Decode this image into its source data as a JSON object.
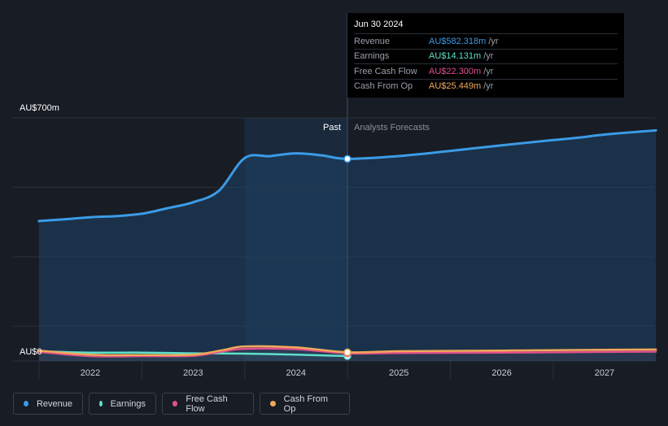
{
  "tooltip": {
    "date": "Jun 30 2024",
    "rows": [
      {
        "label": "Revenue",
        "value": "AU$582.318m",
        "unit": "/yr",
        "color": "#3b9be6"
      },
      {
        "label": "Earnings",
        "value": "AU$14.131m",
        "unit": "/yr",
        "color": "#5ee0c9"
      },
      {
        "label": "Free Cash Flow",
        "value": "AU$22.300m",
        "unit": "/yr",
        "color": "#e0508a"
      },
      {
        "label": "Cash From Op",
        "value": "AU$25.449m",
        "unit": "/yr",
        "color": "#f0a95a"
      }
    ]
  },
  "chart_data": {
    "type": "line",
    "y_top_label": "AU$700m",
    "y_bottom_label": "AU$0",
    "ylim": [
      0,
      700
    ],
    "xlim": [
      2021.5,
      2027.5
    ],
    "x_ticks": [
      "2022",
      "2023",
      "2024",
      "2025",
      "2026",
      "2027"
    ],
    "past_label": "Past",
    "forecast_label": "Analysts Forecasts",
    "past_shade_start": 2023.5,
    "divider_x": 2024.5,
    "legend_placement": "bottom",
    "series": [
      {
        "name": "Revenue",
        "color": "#3b9be6",
        "fill": true,
        "points": [
          [
            2021.5,
            403
          ],
          [
            2021.75,
            408
          ],
          [
            2022.0,
            414
          ],
          [
            2022.25,
            417
          ],
          [
            2022.5,
            424
          ],
          [
            2022.75,
            440
          ],
          [
            2023.0,
            457
          ],
          [
            2023.25,
            490
          ],
          [
            2023.5,
            584
          ],
          [
            2023.75,
            590
          ],
          [
            2024.0,
            598
          ],
          [
            2024.25,
            592
          ],
          [
            2024.5,
            582
          ],
          [
            2025.0,
            590
          ],
          [
            2025.5,
            605
          ],
          [
            2026.0,
            621
          ],
          [
            2026.5,
            636
          ],
          [
            2026.75,
            643
          ],
          [
            2027.0,
            652
          ],
          [
            2027.5,
            664
          ]
        ]
      },
      {
        "name": "Earnings",
        "color": "#5ee0c9",
        "points": [
          [
            2021.5,
            28
          ],
          [
            2022.0,
            24
          ],
          [
            2022.5,
            24
          ],
          [
            2023.0,
            22
          ],
          [
            2023.5,
            21
          ],
          [
            2024.0,
            18
          ],
          [
            2024.5,
            14
          ]
        ]
      },
      {
        "name": "Free Cash Flow",
        "color": "#e0508a",
        "points": [
          [
            2021.5,
            26
          ],
          [
            2022.0,
            14
          ],
          [
            2022.5,
            14
          ],
          [
            2023.0,
            15
          ],
          [
            2023.3,
            28
          ],
          [
            2023.5,
            35
          ],
          [
            2024.0,
            34
          ],
          [
            2024.5,
            22
          ],
          [
            2025.0,
            23
          ],
          [
            2026.0,
            24
          ],
          [
            2027.0,
            26
          ],
          [
            2027.5,
            27
          ]
        ]
      },
      {
        "name": "Cash From Op",
        "color": "#f0a95a",
        "points": [
          [
            2021.5,
            30
          ],
          [
            2022.0,
            18
          ],
          [
            2022.5,
            17
          ],
          [
            2023.0,
            18
          ],
          [
            2023.3,
            32
          ],
          [
            2023.5,
            42
          ],
          [
            2024.0,
            39
          ],
          [
            2024.5,
            25
          ],
          [
            2025.0,
            28
          ],
          [
            2026.0,
            30
          ],
          [
            2027.0,
            32
          ],
          [
            2027.5,
            33
          ]
        ]
      }
    ]
  },
  "legend": [
    {
      "label": "Revenue",
      "color": "#3b9be6"
    },
    {
      "label": "Earnings",
      "color": "#5ee0c9"
    },
    {
      "label": "Free Cash Flow",
      "color": "#e0508a"
    },
    {
      "label": "Cash From Op",
      "color": "#f0a95a"
    }
  ]
}
